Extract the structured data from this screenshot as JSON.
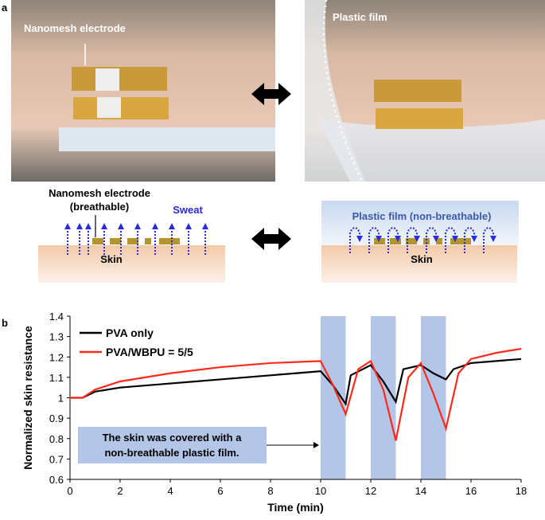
{
  "panel_a": {
    "label": "a",
    "photo_left_label": "Nanomesh electrode",
    "photo_right_label": "Plastic film",
    "diagram_left": {
      "title_line1": "Nanomesh electrode",
      "title_line2": "(breathable)",
      "sweat": "Sweat",
      "skin": "Skin"
    },
    "diagram_right": {
      "title": "Plastic film (non-breathable)",
      "skin": "Skin"
    }
  },
  "panel_b_label": "b",
  "chart_data": {
    "type": "line",
    "x_label": "Time (min)",
    "y_label": "Normalized skin resistance",
    "xlim": [
      0,
      18
    ],
    "xticks": [
      0,
      2,
      4,
      6,
      8,
      10,
      12,
      14,
      16,
      18
    ],
    "ylim": [
      0.6,
      1.4
    ],
    "yticks": [
      0.6,
      0.7,
      0.8,
      0.9,
      1,
      1.1,
      1.2,
      1.3,
      1.4
    ],
    "shaded_regions": [
      [
        10,
        11
      ],
      [
        12,
        13
      ],
      [
        14,
        15
      ]
    ],
    "shade_color": "#b4c6e7",
    "annotation": [
      "The skin was covered with a",
      "non-breathable plastic film."
    ],
    "legend": "upper left",
    "series": [
      {
        "name": "PVA only",
        "color": "#000000",
        "x": [
          0,
          0.5,
          1,
          2,
          4,
          6,
          8,
          9,
          10,
          10.5,
          11,
          11.2,
          12,
          12.5,
          13,
          13.3,
          14,
          14.5,
          15,
          15.3,
          16,
          18
        ],
        "values": [
          1.0,
          1.0,
          1.03,
          1.05,
          1.07,
          1.09,
          1.11,
          1.12,
          1.13,
          1.06,
          0.97,
          1.11,
          1.16,
          1.08,
          0.98,
          1.14,
          1.16,
          1.12,
          1.09,
          1.14,
          1.17,
          1.19
        ]
      },
      {
        "name": "PVA/WBPU = 5/5",
        "color": "#ff2a1a",
        "x": [
          0,
          0.5,
          1,
          2,
          4,
          6,
          8,
          10,
          10.5,
          11,
          11.5,
          12,
          12.5,
          13,
          13.5,
          14,
          14.5,
          15,
          15.5,
          16,
          17,
          18
        ],
        "values": [
          1.0,
          1.0,
          1.04,
          1.08,
          1.12,
          1.15,
          1.17,
          1.18,
          1.06,
          0.92,
          1.14,
          1.18,
          1.04,
          0.79,
          1.1,
          1.17,
          1.02,
          0.85,
          1.12,
          1.19,
          1.22,
          1.24
        ]
      }
    ]
  }
}
